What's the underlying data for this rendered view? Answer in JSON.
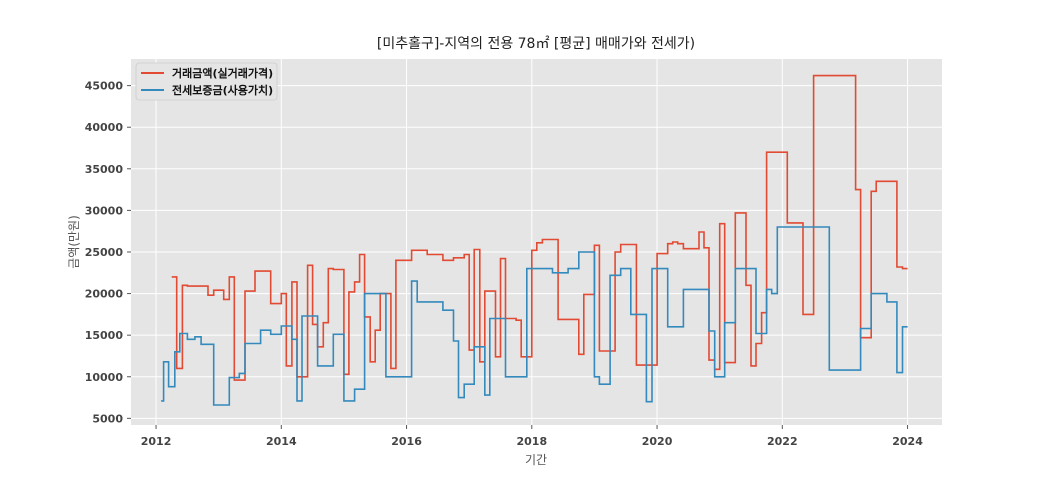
{
  "chart_data": {
    "type": "line",
    "step": true,
    "title": "[미추홀구]-지역의 전용 78㎡ [평균] 매매가와 전세가)",
    "xlabel": "기간",
    "ylabel": "금액(만원)",
    "xlim": [
      2011.6,
      2024.55
    ],
    "ylim": [
      4200,
      48200
    ],
    "xticks": [
      2012,
      2014,
      2016,
      2018,
      2020,
      2022,
      2024
    ],
    "xtick_labels": [
      "2012",
      "2014",
      "2016",
      "2018",
      "2020",
      "2022",
      "2024"
    ],
    "yticks": [
      5000,
      10000,
      15000,
      20000,
      25000,
      30000,
      35000,
      40000,
      45000
    ],
    "ytick_labels": [
      "5000",
      "10000",
      "15000",
      "20000",
      "25000",
      "30000",
      "35000",
      "40000",
      "45000"
    ],
    "grid": true,
    "legend": "top-left",
    "series": [
      {
        "name": "거래금액(실거래가격)",
        "color": "#e24a33",
        "points": [
          [
            2012.25,
            22000
          ],
          [
            2012.33,
            11000
          ],
          [
            2012.42,
            21000
          ],
          [
            2012.5,
            20900
          ],
          [
            2012.83,
            19800
          ],
          [
            2012.92,
            20400
          ],
          [
            2013.08,
            19300
          ],
          [
            2013.17,
            22000
          ],
          [
            2013.25,
            9600
          ],
          [
            2013.42,
            20300
          ],
          [
            2013.58,
            22700
          ],
          [
            2013.83,
            18800
          ],
          [
            2014.0,
            20000
          ],
          [
            2014.08,
            11300
          ],
          [
            2014.17,
            21400
          ],
          [
            2014.25,
            10000
          ],
          [
            2014.42,
            23400
          ],
          [
            2014.5,
            16300
          ],
          [
            2014.58,
            13600
          ],
          [
            2014.67,
            16500
          ],
          [
            2014.75,
            23000
          ],
          [
            2014.83,
            22900
          ],
          [
            2015.0,
            10300
          ],
          [
            2015.08,
            20200
          ],
          [
            2015.17,
            21400
          ],
          [
            2015.25,
            24700
          ],
          [
            2015.33,
            17200
          ],
          [
            2015.42,
            11800
          ],
          [
            2015.5,
            15600
          ],
          [
            2015.58,
            20000
          ],
          [
            2015.75,
            11000
          ],
          [
            2015.83,
            24000
          ],
          [
            2016.08,
            25200
          ],
          [
            2016.33,
            24700
          ],
          [
            2016.58,
            24000
          ],
          [
            2016.75,
            24300
          ],
          [
            2016.92,
            24700
          ],
          [
            2017.0,
            13200
          ],
          [
            2017.08,
            25300
          ],
          [
            2017.17,
            11800
          ],
          [
            2017.25,
            20300
          ],
          [
            2017.42,
            12400
          ],
          [
            2017.5,
            24200
          ],
          [
            2017.58,
            17000
          ],
          [
            2017.75,
            16800
          ],
          [
            2017.83,
            12400
          ],
          [
            2018.0,
            25200
          ],
          [
            2018.08,
            26100
          ],
          [
            2018.17,
            26500
          ],
          [
            2018.42,
            16900
          ],
          [
            2018.75,
            12700
          ],
          [
            2018.83,
            19900
          ],
          [
            2019.0,
            25800
          ],
          [
            2019.08,
            13100
          ],
          [
            2019.33,
            25000
          ],
          [
            2019.42,
            25900
          ],
          [
            2019.67,
            11400
          ],
          [
            2020.0,
            24800
          ],
          [
            2020.17,
            26000
          ],
          [
            2020.25,
            26200
          ],
          [
            2020.33,
            26000
          ],
          [
            2020.42,
            25400
          ],
          [
            2020.67,
            27400
          ],
          [
            2020.75,
            25500
          ],
          [
            2020.83,
            12000
          ],
          [
            2020.92,
            10900
          ],
          [
            2021.0,
            28400
          ],
          [
            2021.08,
            11700
          ],
          [
            2021.25,
            29700
          ],
          [
            2021.42,
            21000
          ],
          [
            2021.5,
            11300
          ],
          [
            2021.58,
            14000
          ],
          [
            2021.67,
            17700
          ],
          [
            2021.75,
            37000
          ],
          [
            2022.08,
            28500
          ],
          [
            2022.33,
            17500
          ],
          [
            2022.5,
            46200
          ],
          [
            2023.17,
            32500
          ],
          [
            2023.25,
            14700
          ],
          [
            2023.42,
            32300
          ],
          [
            2023.5,
            33500
          ],
          [
            2023.83,
            23200
          ],
          [
            2023.92,
            23000
          ],
          [
            2024.0,
            23000
          ]
        ]
      },
      {
        "name": "전세보증금(사용가치)",
        "color": "#348abd",
        "points": [
          [
            2012.08,
            7100
          ],
          [
            2012.12,
            11800
          ],
          [
            2012.2,
            8800
          ],
          [
            2012.3,
            13000
          ],
          [
            2012.38,
            15200
          ],
          [
            2012.5,
            14500
          ],
          [
            2012.62,
            14800
          ],
          [
            2012.72,
            13900
          ],
          [
            2012.92,
            6600
          ],
          [
            2013.17,
            9900
          ],
          [
            2013.33,
            10400
          ],
          [
            2013.42,
            14000
          ],
          [
            2013.67,
            15600
          ],
          [
            2013.83,
            15100
          ],
          [
            2014.0,
            16100
          ],
          [
            2014.17,
            14500
          ],
          [
            2014.25,
            7100
          ],
          [
            2014.33,
            17300
          ],
          [
            2014.58,
            11300
          ],
          [
            2014.83,
            15100
          ],
          [
            2015.0,
            7100
          ],
          [
            2015.17,
            8500
          ],
          [
            2015.33,
            20000
          ],
          [
            2015.67,
            10000
          ],
          [
            2016.08,
            21500
          ],
          [
            2016.17,
            19000
          ],
          [
            2016.58,
            18000
          ],
          [
            2016.75,
            14300
          ],
          [
            2016.83,
            7500
          ],
          [
            2016.92,
            9100
          ],
          [
            2017.08,
            13600
          ],
          [
            2017.25,
            7800
          ],
          [
            2017.33,
            17000
          ],
          [
            2017.58,
            10000
          ],
          [
            2017.92,
            23000
          ],
          [
            2018.33,
            22500
          ],
          [
            2018.58,
            23000
          ],
          [
            2018.75,
            25000
          ],
          [
            2019.0,
            10000
          ],
          [
            2019.08,
            9100
          ],
          [
            2019.25,
            22200
          ],
          [
            2019.42,
            23000
          ],
          [
            2019.58,
            17500
          ],
          [
            2019.83,
            7000
          ],
          [
            2019.92,
            23000
          ],
          [
            2020.17,
            16000
          ],
          [
            2020.42,
            20500
          ],
          [
            2020.83,
            15500
          ],
          [
            2020.92,
            10000
          ],
          [
            2021.08,
            16500
          ],
          [
            2021.25,
            23000
          ],
          [
            2021.58,
            15200
          ],
          [
            2021.75,
            20500
          ],
          [
            2021.83,
            20000
          ],
          [
            2021.92,
            28000
          ],
          [
            2022.67,
            28000
          ],
          [
            2022.75,
            10800
          ],
          [
            2023.25,
            15800
          ],
          [
            2023.42,
            20000
          ],
          [
            2023.67,
            19000
          ],
          [
            2023.83,
            10500
          ],
          [
            2023.92,
            16000
          ],
          [
            2024.0,
            16000
          ]
        ]
      }
    ]
  }
}
